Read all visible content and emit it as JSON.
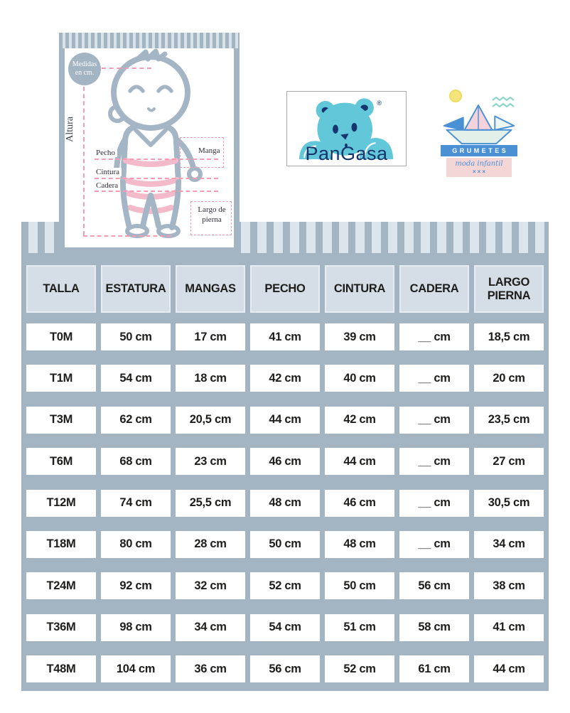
{
  "illustration": {
    "badge": "Medidas en cm.",
    "height_label": "Altura",
    "labels": {
      "pecho": "Pecho",
      "cintura": "Cintura",
      "cadera": "Cadera",
      "manga": "Manga",
      "largo_pierna": "Largo de pierna"
    }
  },
  "pangasa": {
    "name": "PanGasa",
    "registered": "®"
  },
  "grumetes": {
    "name": "GRUMETES",
    "tagline": "moda infantil",
    "kisses": "×××"
  },
  "chart_data": {
    "type": "table",
    "headers": [
      "TALLA",
      "ESTATURA",
      "MANGAS",
      "PECHO",
      "CINTURA",
      "CADERA",
      "LARGO PIERNA"
    ],
    "rows": [
      [
        "T0M",
        "50 cm",
        "17 cm",
        "41 cm",
        "39 cm",
        "__ cm",
        "18,5 cm"
      ],
      [
        "T1M",
        "54 cm",
        "18 cm",
        "42 cm",
        "40 cm",
        "__ cm",
        "20 cm"
      ],
      [
        "T3M",
        "62 cm",
        "20,5 cm",
        "44 cm",
        "42 cm",
        "__ cm",
        "23,5 cm"
      ],
      [
        "T6M",
        "68 cm",
        "23 cm",
        "46 cm",
        "44 cm",
        "__ cm",
        "27 cm"
      ],
      [
        "T12M",
        "74 cm",
        "25,5 cm",
        "48 cm",
        "46 cm",
        "__ cm",
        "30,5 cm"
      ],
      [
        "T18M",
        "80 cm",
        "28 cm",
        "50 cm",
        "48 cm",
        "__ cm",
        "34 cm"
      ],
      [
        "T24M",
        "92 cm",
        "32 cm",
        "52 cm",
        "50 cm",
        "56 cm",
        "38 cm"
      ],
      [
        "T36M",
        "98 cm",
        "34 cm",
        "54 cm",
        "51 cm",
        "58 cm",
        "41 cm"
      ],
      [
        "T48M",
        "104 cm",
        "36 cm",
        "56 cm",
        "52 cm",
        "61 cm",
        "44 cm"
      ]
    ]
  },
  "colors": {
    "table_background": "#a3b4c3",
    "stripe_light": "#dde5ec",
    "header_cell": "#d5dee6",
    "cell_text": "#1d1d1b",
    "illustration_outline": "#a4b6c5",
    "pink_stripe": "#f3bac9",
    "pink_dash": "#f59cb4",
    "pangasa_navy": "#16356e",
    "pangasa_teal": "#62c8d9",
    "grumetes_blue": "#4a90d5",
    "grumetes_pink": "#f5d6d6",
    "sun_yellow": "#f3e57c",
    "zigzag_teal": "#8fd4c8"
  }
}
